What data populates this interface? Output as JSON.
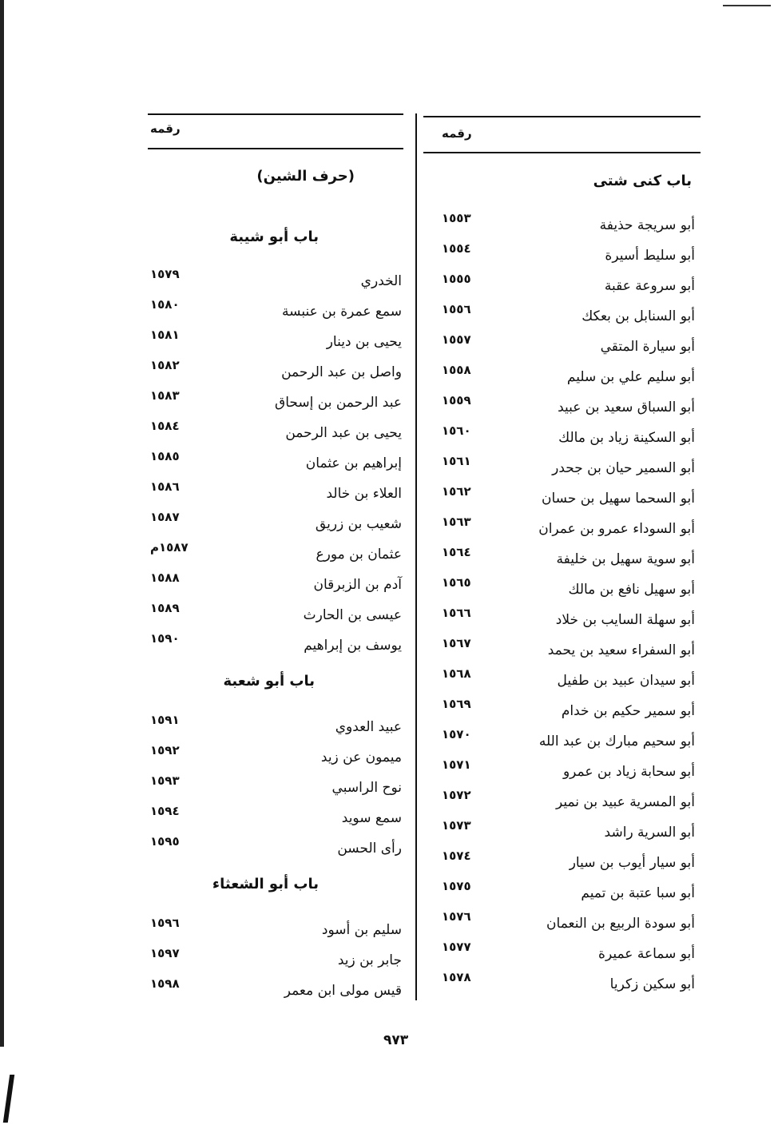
{
  "page_number": "٩٧٣",
  "right_column": {
    "header": "رقمه",
    "section_title": "باب كنى شتى",
    "entries": [
      {
        "name": "أبو سريجة حذيفة",
        "num": "١٥٥٣"
      },
      {
        "name": "أبو سليط أسيرة",
        "num": "١٥٥٤"
      },
      {
        "name": "أبو سروعة عقبة",
        "num": "١٥٥٥"
      },
      {
        "name": "أبو السنابل بن بعكك",
        "num": "١٥٥٦"
      },
      {
        "name": "أبو سيارة المتقي",
        "num": "١٥٥٧"
      },
      {
        "name": "أبو سليم علي بن سليم",
        "num": "١٥٥٨"
      },
      {
        "name": "أبو السباق سعيد بن عبيد",
        "num": "١٥٥٩"
      },
      {
        "name": "أبو السكينة زياد بن مالك",
        "num": "١٥٦٠"
      },
      {
        "name": "أبو السمير حيان بن جحدر",
        "num": "١٥٦١"
      },
      {
        "name": "أبو السحما سهيل بن حسان",
        "num": "١٥٦٢"
      },
      {
        "name": "أبو السوداء عمرو بن عمران",
        "num": "١٥٦٣"
      },
      {
        "name": "أبو سوية سهيل بن خليفة",
        "num": "١٥٦٤"
      },
      {
        "name": "أبو سهيل نافع بن مالك",
        "num": "١٥٦٥"
      },
      {
        "name": "أبو سهلة السايب بن خلاد",
        "num": "١٥٦٦"
      },
      {
        "name": "أبو السفراء سعيد بن يحمد",
        "num": "١٥٦٧"
      },
      {
        "name": "أبو سيدان عبيد بن طفيل",
        "num": "١٥٦٨"
      },
      {
        "name": "أبو سمير حكيم بن خدام",
        "num": "١٥٦٩"
      },
      {
        "name": "أبو سحيم مبارك بن عبد الله",
        "num": "١٥٧٠"
      },
      {
        "name": "أبو سحابة زياد بن عمرو",
        "num": "١٥٧١"
      },
      {
        "name": "أبو المسرية عبيد بن نمير",
        "num": "١٥٧٢"
      },
      {
        "name": "أبو السرية راشد",
        "num": "١٥٧٣"
      },
      {
        "name": "أبو سيار أيوب بن سيار",
        "num": "١٥٧٤"
      },
      {
        "name": "أبو سبا عتبة بن تميم",
        "num": "١٥٧٥"
      },
      {
        "name": "أبو سودة الربيع بن النعمان",
        "num": "١٥٧٦"
      },
      {
        "name": "أبو سماعة عميرة",
        "num": "١٥٧٧"
      },
      {
        "name": "أبو سكين زكريا",
        "num": "١٥٧٨"
      }
    ]
  },
  "left_column": {
    "header": "رقمه",
    "letter_title": "(حرف الشين)",
    "sections": [
      {
        "title": "باب أبو شيبة",
        "entries": [
          {
            "name": "الخدري",
            "num": "١٥٧٩"
          },
          {
            "name": "سمع عمرة بن عنبسة",
            "num": "١٥٨٠"
          },
          {
            "name": "يحيى بن دينار",
            "num": "١٥٨١"
          },
          {
            "name": "واصل بن عبد الرحمن",
            "num": "١٥٨٢"
          },
          {
            "name": "عبد الرحمن بن إسحاق",
            "num": "١٥٨٣"
          },
          {
            "name": "يحيى بن عبد الرحمن",
            "num": "١٥٨٤"
          },
          {
            "name": "إبراهيم بن عثمان",
            "num": "١٥٨٥"
          },
          {
            "name": "العلاء بن خالد",
            "num": "١٥٨٦"
          },
          {
            "name": "شعيب بن زريق",
            "num": "١٥٨٧"
          },
          {
            "name": "عثمان بن مورع",
            "num": "١٥٨٧م"
          },
          {
            "name": "آدم بن الزبرقان",
            "num": "١٥٨٨"
          },
          {
            "name": "عيسى بن الحارث",
            "num": "١٥٨٩"
          },
          {
            "name": "يوسف بن إبراهيم",
            "num": "١٥٩٠"
          }
        ]
      },
      {
        "title": "باب أبو شعبة",
        "entries": [
          {
            "name": "عبيد العدوي",
            "num": "١٥٩١"
          },
          {
            "name": "ميمون عن زيد",
            "num": "١٥٩٢"
          },
          {
            "name": "نوح الراسبي",
            "num": "١٥٩٣"
          },
          {
            "name": "سمع سويد",
            "num": "١٥٩٤"
          },
          {
            "name": "رأى الحسن",
            "num": "١٥٩٥"
          }
        ]
      },
      {
        "title": "باب أبو الشعثاء",
        "entries": [
          {
            "name": "سليم بن أسود",
            "num": "١٥٩٦"
          },
          {
            "name": "جابر بن زيد",
            "num": "١٥٩٧"
          },
          {
            "name": "قيس مولى ابن معمر",
            "num": "١٥٩٨"
          }
        ]
      }
    ]
  }
}
